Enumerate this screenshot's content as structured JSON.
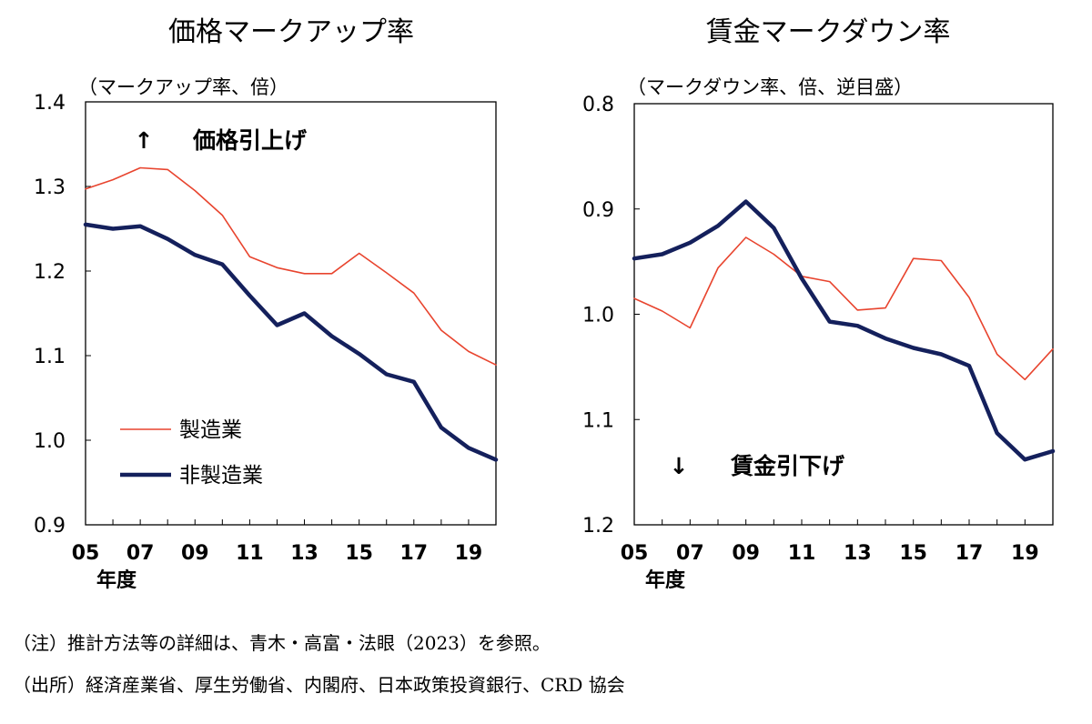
{
  "chart_data": [
    {
      "type": "line",
      "title": "価格マークアップ率",
      "ylabel": "（マークアップ率、倍）",
      "ylim": [
        0.9,
        1.4
      ],
      "yticks": [
        "1.4",
        "1.3",
        "1.2",
        "1.1",
        "1.0",
        "0.9"
      ],
      "y_inverted": false,
      "x": [
        2005,
        2006,
        2007,
        2008,
        2009,
        2010,
        2011,
        2012,
        2013,
        2014,
        2015,
        2016,
        2017,
        2018,
        2019,
        2020
      ],
      "xticks": [
        "05",
        "07",
        "09",
        "11",
        "13",
        "15",
        "17",
        "19"
      ],
      "xlabel": "年度",
      "annotation": {
        "arrow": "↑",
        "text": "価格引上げ"
      },
      "legend_position": "bottom-left",
      "grid": false,
      "series": [
        {
          "name": "製造業",
          "color": "#e8442e",
          "values": [
            1.297,
            1.308,
            1.322,
            1.32,
            1.295,
            1.266,
            1.217,
            1.204,
            1.197,
            1.197,
            1.221,
            1.198,
            1.174,
            1.13,
            1.105,
            1.089
          ]
        },
        {
          "name": "非製造業",
          "color": "#14205c",
          "values": [
            1.255,
            1.25,
            1.253,
            1.238,
            1.219,
            1.208,
            1.171,
            1.136,
            1.15,
            1.123,
            1.102,
            1.078,
            1.069,
            1.015,
            0.991,
            0.977
          ]
        }
      ]
    },
    {
      "type": "line",
      "title": "賃金マークダウン率",
      "ylabel": "（マークダウン率、倍、逆目盛）",
      "ylim": [
        0.8,
        1.2
      ],
      "yticks": [
        "0.8",
        "0.9",
        "1.0",
        "1.1",
        "1.2"
      ],
      "y_inverted": true,
      "x": [
        2005,
        2006,
        2007,
        2008,
        2009,
        2010,
        2011,
        2012,
        2013,
        2014,
        2015,
        2016,
        2017,
        2018,
        2019,
        2020
      ],
      "xticks": [
        "05",
        "07",
        "09",
        "11",
        "13",
        "15",
        "17",
        "19"
      ],
      "xlabel": "年度",
      "annotation": {
        "arrow": "↓",
        "text": "賃金引下げ"
      },
      "grid": false,
      "series": [
        {
          "name": "製造業",
          "color": "#e8442e",
          "values": [
            0.985,
            0.997,
            1.013,
            0.956,
            0.927,
            0.943,
            0.964,
            0.969,
            0.996,
            0.994,
            0.947,
            0.949,
            0.984,
            1.038,
            1.062,
            1.033
          ]
        },
        {
          "name": "非製造業",
          "color": "#14205c",
          "values": [
            0.947,
            0.943,
            0.932,
            0.916,
            0.893,
            0.918,
            0.966,
            1.007,
            1.011,
            1.023,
            1.032,
            1.038,
            1.049,
            1.113,
            1.138,
            1.13
          ]
        }
      ]
    }
  ],
  "notes": {
    "note": "（注）推計方法等の詳細は、青木・高富・法眼（2023）を参照。",
    "source": "（出所）経済産業省、厚生労働省、内閣府、日本政策投資銀行、CRD 協会"
  }
}
